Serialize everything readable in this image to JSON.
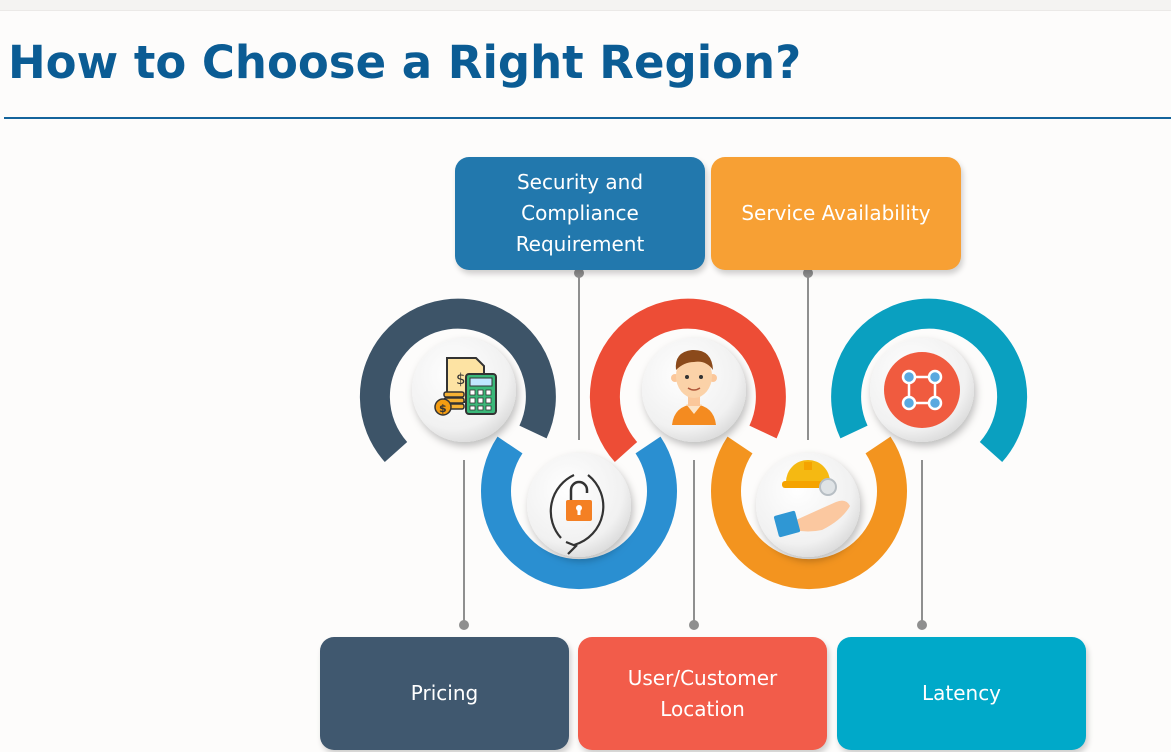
{
  "title": "How to Choose a Right Region?",
  "boxes": {
    "security": {
      "label": "Security and\nCompliance\nRequirement",
      "color": "#2278ad"
    },
    "availability": {
      "label": "Service Availability",
      "color": "#f7a034"
    },
    "pricing": {
      "label": "Pricing",
      "color": "#40586f"
    },
    "location": {
      "label": "User/Customer\nLocation",
      "color": "#f25c4a"
    },
    "latency": {
      "label": "Latency",
      "color": "#00a9c9"
    }
  },
  "icons": [
    "pricing-calculator-icon",
    "unlock-icon",
    "customer-avatar-icon",
    "service-hand-icon",
    "network-nodes-icon"
  ],
  "colors": {
    "title": "#0b5c94",
    "connector": "#8f8f8f"
  }
}
